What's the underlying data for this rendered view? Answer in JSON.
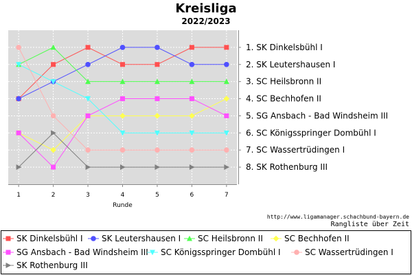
{
  "title": "Kreisliga",
  "subtitle": "2022/2023",
  "credit_url": "http://www.ligamanager.schachbund-bayern.de",
  "credit_text": "Rangliste über Zeit",
  "chart_data": {
    "type": "line",
    "x": [
      1,
      2,
      3,
      4,
      5,
      6,
      7
    ],
    "xlabel": "Runde",
    "ylabel": "",
    "xlim": [
      0.7,
      7.3
    ],
    "ylim": [
      9,
      0
    ],
    "y_inverted": true,
    "grid": true,
    "legend_position": "bottom",
    "standings_labels": [
      "1. SK Dinkelsbühl I",
      "2. SK Leutershausen I",
      "3. SC Heilsbronn II",
      "4. SC Bechhofen II",
      "5. SG Ansbach - Bad Windsheim III",
      "6. SC Königsspringer Dombühl I",
      "7. SC Wassertrüdingen I",
      "8. SK Rothenburg III"
    ],
    "series": [
      {
        "name": "SK Dinkelsbühl I",
        "color": "#ff5050",
        "marker": "square",
        "values": [
          4,
          2,
          1,
          2,
          2,
          1,
          1
        ]
      },
      {
        "name": "SK Leutershausen I",
        "color": "#5050ff",
        "marker": "circle",
        "values": [
          4,
          3,
          2,
          1,
          1,
          2,
          2
        ]
      },
      {
        "name": "SC Heilsbronn II",
        "color": "#50ff50",
        "marker": "triangle-up",
        "values": [
          2,
          1,
          3,
          3,
          3,
          3,
          3
        ]
      },
      {
        "name": "SC Bechhofen II",
        "color": "#ffff50",
        "marker": "diamond",
        "values": [
          6,
          7,
          5,
          5,
          5,
          5,
          4
        ]
      },
      {
        "name": "SG Ansbach - Bad Windsheim III",
        "color": "#ff50ff",
        "marker": "square",
        "values": [
          6,
          8,
          5,
          4,
          4,
          4,
          5
        ]
      },
      {
        "name": "SC Königsspringer Dombühl I",
        "color": "#50ffff",
        "marker": "triangle-down",
        "values": [
          2,
          3,
          4,
          6,
          6,
          6,
          6
        ]
      },
      {
        "name": "SC Wassertrüdingen I",
        "color": "#ffb0b0",
        "marker": "circle",
        "values": [
          1,
          5,
          7,
          7,
          7,
          7,
          7
        ]
      },
      {
        "name": "SK Rothenburg III",
        "color": "#808080",
        "marker": "triangle-right",
        "values": [
          8,
          6,
          8,
          8,
          8,
          8,
          8
        ]
      }
    ]
  }
}
